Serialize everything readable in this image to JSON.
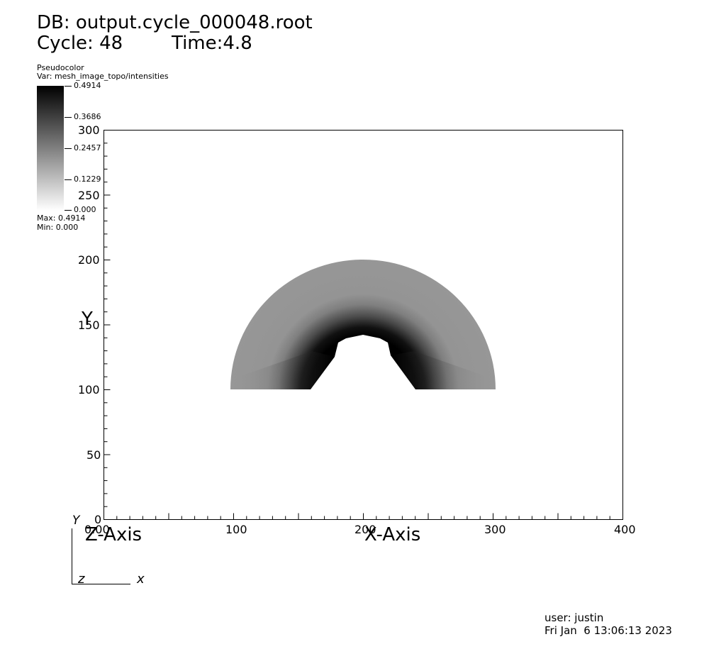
{
  "header": {
    "db_line": "DB: output.cycle_000048.root",
    "cycle_label": "Cycle: 48",
    "time_label": "Time:4.8"
  },
  "legend": {
    "plot_type": "Pseudocolor",
    "variable": "Var: mesh_image_topo/intensities",
    "ticks": [
      "0.4914",
      "0.3686",
      "0.2457",
      "0.1229",
      "0.000"
    ],
    "max_label": "Max:  0.4914",
    "min_label": "Min:  0.000"
  },
  "axes": {
    "x_title": "X-Axis",
    "y_title": "Y",
    "z_title": "Z-Axis",
    "triad_y": "Y",
    "triad_z": "z",
    "triad_x": "x"
  },
  "footer": {
    "user": "user: justin",
    "datetime": "Fri Jan  6 13:06:13 2023"
  },
  "chart_data": {
    "type": "heatmap",
    "x": {
      "range": [
        0,
        400
      ],
      "ticks": [
        0,
        100,
        200,
        300,
        400
      ],
      "label": "X-Axis"
    },
    "y": {
      "range": [
        0,
        300
      ],
      "ticks": [
        0,
        50,
        100,
        150,
        200,
        250,
        300
      ],
      "label": "Y"
    },
    "colormap": "grayscale (white = 0.000, black = 0.4914)",
    "value_range": [
      0.0,
      0.4914
    ],
    "shape": {
      "kind": "half-annulus",
      "center": [
        200,
        100
      ],
      "outer_radius": 100,
      "inner_radius": 35,
      "outer_value_approx": 0.2,
      "inner_edge_value_approx": 0.4914
    }
  }
}
